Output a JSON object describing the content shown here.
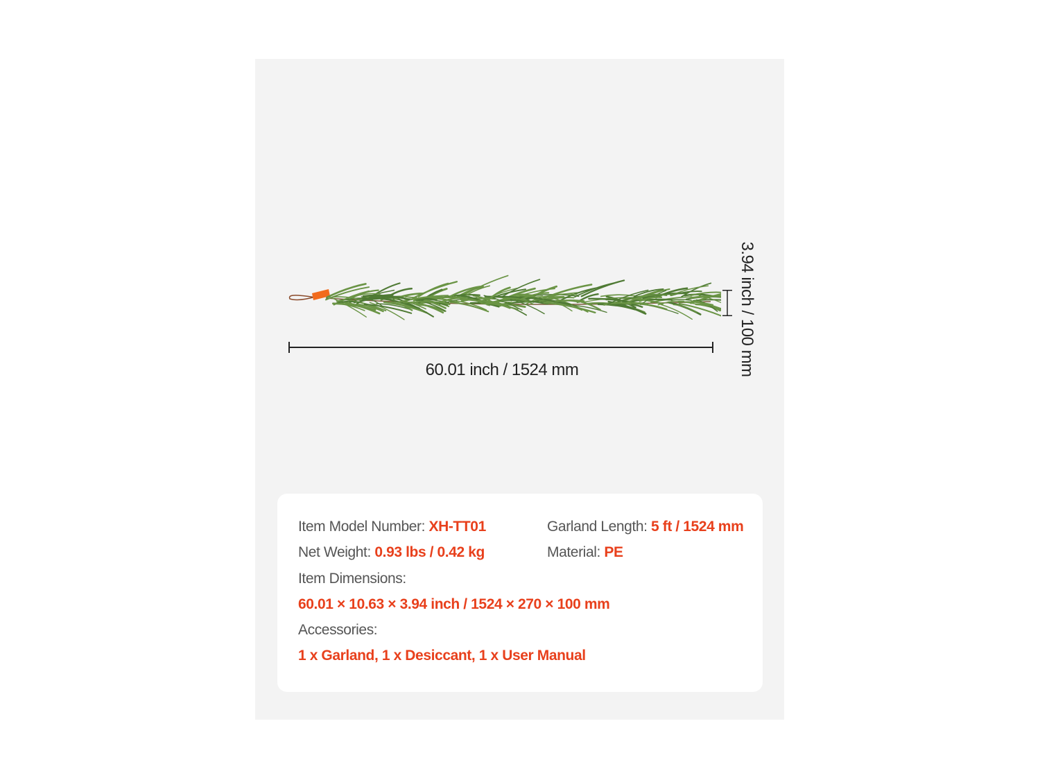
{
  "colors": {
    "accent": "#e8401c",
    "panel": "#f3f3f3",
    "garland": "#4f7a34",
    "tag": "#f26b1d"
  },
  "dimensions": {
    "length_label": "60.01 inch /  1524 mm",
    "height_label": "3.94 inch / 100 mm"
  },
  "specs": {
    "model_label": "Item Model Number: ",
    "model_value": "XH-TT01",
    "length_label": "Garland Length: ",
    "length_value": "5 ft / 1524 mm",
    "weight_label": "Net Weight: ",
    "weight_value": "0.93 lbs / 0.42 kg",
    "material_label": "Material: ",
    "material_value": "PE",
    "dims_label": "Item Dimensions:",
    "dims_value": "60.01 × 10.63 × 3.94 inch / 1524 × 270 × 100 mm",
    "acc_label": "Accessories:",
    "acc_value": "1 x Garland, 1 x Desiccant, 1 x User Manual"
  }
}
